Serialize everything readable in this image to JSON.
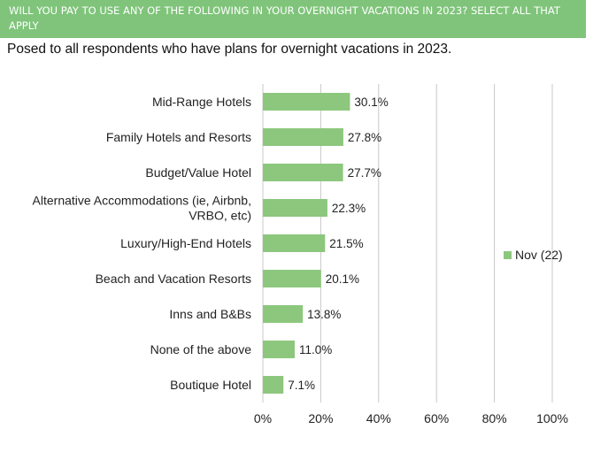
{
  "header": {
    "title": "WILL YOU PAY TO USE ANY OF THE FOLLOWING IN YOUR OVERNIGHT VACATIONS IN 2023? SELECT ALL THAT APPLY",
    "subtitle": "Posed to all respondents who have plans for overnight vacations in 2023."
  },
  "colors": {
    "header_bg": "#7fc47a",
    "bar": "#8cc77d",
    "grid": "#c8c8c8"
  },
  "chart_data": {
    "type": "bar",
    "orientation": "horizontal",
    "categories": [
      "Mid-Range Hotels",
      "Family Hotels and Resorts",
      "Budget/Value Hotel",
      "Alternative Accommodations (ie, Airbnb, VRBO, etc)",
      "Luxury/High-End Hotels",
      "Beach and Vacation Resorts",
      "Inns and B&Bs",
      "None of the above",
      "Boutique Hotel"
    ],
    "category_lines": [
      [
        "Mid-Range Hotels"
      ],
      [
        "Family Hotels and Resorts"
      ],
      [
        "Budget/Value Hotel"
      ],
      [
        "Alternative Accommodations (ie, Airbnb,",
        "VRBO, etc)"
      ],
      [
        "Luxury/High-End Hotels"
      ],
      [
        "Beach and Vacation Resorts"
      ],
      [
        "Inns and B&Bs"
      ],
      [
        "None of the above"
      ],
      [
        "Boutique Hotel"
      ]
    ],
    "series": [
      {
        "name": "Nov (22)",
        "values": [
          30.1,
          27.8,
          27.7,
          22.3,
          21.5,
          20.1,
          13.8,
          11.0,
          7.1
        ],
        "labels": [
          "30.1%",
          "27.8%",
          "27.7%",
          "22.3%",
          "21.5%",
          "20.1%",
          "13.8%",
          "11.0%",
          "7.1%"
        ]
      }
    ],
    "xlim": [
      0,
      100
    ],
    "ticks": [
      0,
      20,
      40,
      60,
      80,
      100
    ],
    "tick_labels": [
      "0%",
      "20%",
      "40%",
      "60%",
      "80%",
      "100%"
    ],
    "grid": true,
    "legend": "right"
  }
}
